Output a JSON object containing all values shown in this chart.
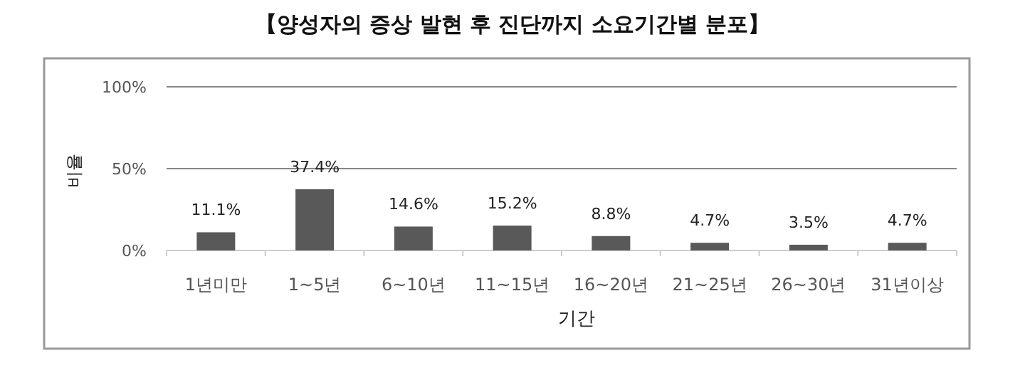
{
  "chart_data": {
    "type": "bar",
    "title": "【양성자의 증상 발현 후 진단까지 소요기간별 분포】",
    "xlabel": "기간",
    "ylabel": "비율",
    "categories": [
      "1년미만",
      "1~5년",
      "6~10년",
      "11~15년",
      "16~20년",
      "21~25년",
      "26~30년",
      "31년이상"
    ],
    "values": [
      11.1,
      37.4,
      14.6,
      15.2,
      8.8,
      4.7,
      3.5,
      4.7
    ],
    "value_labels": [
      "11.1%",
      "37.4%",
      "14.6%",
      "15.2%",
      "8.8%",
      "4.7%",
      "3.5%",
      "4.7%"
    ],
    "color": "#595959",
    "ylim": [
      0,
      100
    ],
    "yticks": [
      {
        "value": 0,
        "label": "0%"
      },
      {
        "value": 50,
        "label": "50%"
      },
      {
        "value": 100,
        "label": "100%"
      }
    ],
    "grid": "y"
  }
}
